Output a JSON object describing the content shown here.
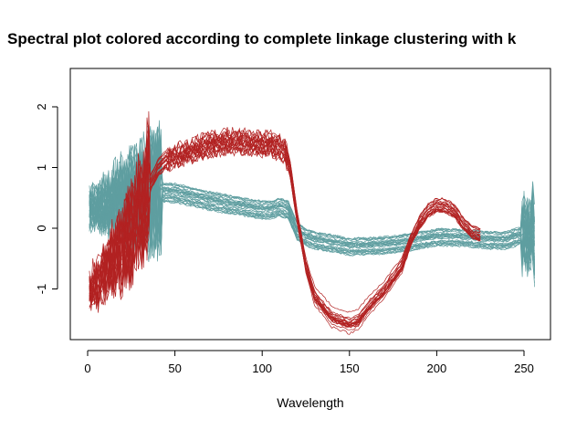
{
  "chart_data": {
    "type": "line",
    "title": "Spectral plot colored according to complete linkage clustering with k",
    "xlabel": "Wavelength",
    "ylabel": "",
    "xlim": [
      0,
      256
    ],
    "ylim": [
      -1.8,
      2.5
    ],
    "x_ticks": [
      0,
      50,
      100,
      150,
      200,
      250
    ],
    "y_ticks": [
      -1,
      0,
      1,
      2
    ],
    "grid": false,
    "colors": {
      "cluster_red": "#b22222",
      "cluster_teal": "#5f9ea0",
      "axis": "#000000"
    },
    "series": [
      {
        "color": "#5f9ea0",
        "n_spectra": 30,
        "noise_until_x": 42,
        "x": [
          1,
          5,
          10,
          20,
          30,
          40,
          50,
          60,
          70,
          80,
          90,
          100,
          105,
          110,
          115,
          120,
          125,
          130,
          140,
          150,
          160,
          170,
          180,
          190,
          200,
          210,
          220,
          230,
          240,
          245,
          250,
          253,
          255,
          256
        ],
        "values": [
          0.3,
          0.35,
          0.4,
          0.5,
          0.55,
          0.6,
          0.58,
          0.52,
          0.45,
          0.4,
          0.35,
          0.3,
          0.3,
          0.35,
          0.3,
          -0.05,
          -0.15,
          -0.2,
          -0.25,
          -0.3,
          -0.3,
          -0.28,
          -0.25,
          -0.2,
          -0.15,
          -0.15,
          -0.17,
          -0.2,
          -0.2,
          -0.15,
          -0.1,
          -0.15,
          0.1,
          -0.3
        ]
      },
      {
        "color": "#b22222",
        "n_spectra": 22,
        "noise_until_x": 35,
        "x": [
          1,
          5,
          10,
          20,
          30,
          35,
          40,
          45,
          50,
          55,
          60,
          70,
          80,
          90,
          100,
          105,
          110,
          113,
          116,
          120,
          125,
          130,
          140,
          150,
          155,
          160,
          170,
          180,
          185,
          190,
          195,
          200,
          205,
          210,
          215,
          220,
          225
        ],
        "values": [
          -1.0,
          -0.9,
          -0.7,
          -0.3,
          0.3,
          0.7,
          1.0,
          1.15,
          1.2,
          1.25,
          1.3,
          1.4,
          1.45,
          1.45,
          1.4,
          1.4,
          1.35,
          1.3,
          1.0,
          0.2,
          -0.6,
          -1.1,
          -1.45,
          -1.55,
          -1.5,
          -1.3,
          -1.0,
          -0.6,
          -0.2,
          0.1,
          0.3,
          0.4,
          0.38,
          0.3,
          0.1,
          -0.05,
          -0.1
        ]
      }
    ]
  }
}
